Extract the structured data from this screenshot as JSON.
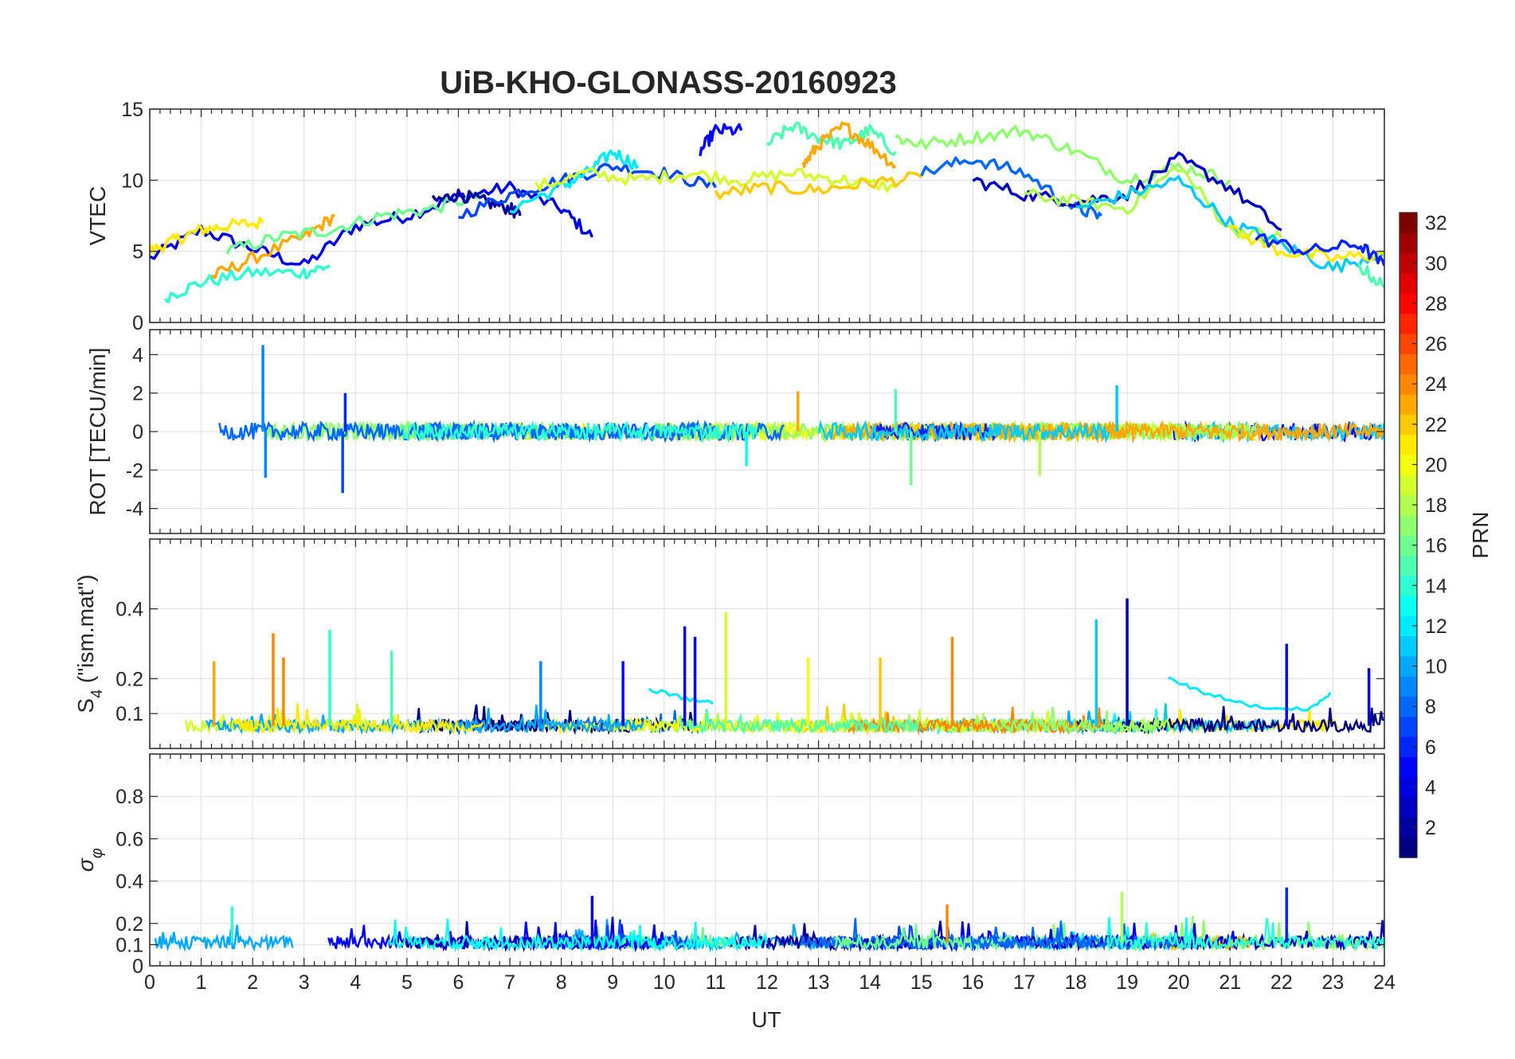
{
  "title": "UiB-KHO-GLONASS-20160923",
  "xlabel": "UT",
  "x_ticks": [
    "0",
    "1",
    "2",
    "3",
    "4",
    "5",
    "6",
    "7",
    "8",
    "9",
    "10",
    "11",
    "12",
    "13",
    "14",
    "15",
    "16",
    "17",
    "18",
    "19",
    "20",
    "21",
    "22",
    "23",
    "24"
  ],
  "colorbar": {
    "label": "PRN",
    "colormap": "jet",
    "range": [
      1,
      32
    ],
    "ticks": [
      "2",
      "4",
      "6",
      "8",
      "10",
      "12",
      "14",
      "16",
      "18",
      "20",
      "22",
      "24",
      "26",
      "28",
      "30",
      "32"
    ]
  },
  "chart_data": [
    {
      "type": "line",
      "ylabel": "VTEC",
      "xlim": [
        0,
        24
      ],
      "ylim": [
        0,
        15
      ],
      "ytick_values": [
        0,
        5,
        10,
        15
      ],
      "y_ticks": [
        "0",
        "5",
        "10",
        "15"
      ],
      "series": [
        {
          "prn": 4,
          "x": [
            0,
            1,
            2,
            3,
            4,
            5,
            6,
            7,
            8,
            8.6
          ],
          "y": [
            4.5,
            6.5,
            5.2,
            4.0,
            6.8,
            7.5,
            8.8,
            9.5,
            8.0,
            6.0
          ]
        },
        {
          "prn": 21,
          "x": [
            0,
            0.5,
            1,
            1.5,
            2.2
          ],
          "y": [
            5.0,
            5.8,
            6.5,
            6.8,
            7.0
          ]
        },
        {
          "prn": 14,
          "x": [
            0.3,
            1,
            2,
            3,
            3.5
          ],
          "y": [
            1.8,
            2.8,
            3.5,
            3.5,
            4.0
          ]
        },
        {
          "prn": 23,
          "x": [
            1.2,
            2,
            3,
            3.6
          ],
          "y": [
            3.2,
            4.5,
            6.0,
            7.5
          ]
        },
        {
          "prn": 16,
          "x": [
            1.5,
            2.5,
            3.5,
            4.5,
            5.5,
            6.5
          ],
          "y": [
            5.0,
            6.0,
            6.5,
            7.5,
            8.0,
            9.0
          ]
        },
        {
          "prn": 2,
          "x": [
            5.5,
            6,
            6.5,
            7,
            7.2
          ],
          "y": [
            8.5,
            9.0,
            8.5,
            8.0,
            7.5
          ]
        },
        {
          "prn": 7,
          "x": [
            6,
            7,
            8,
            9,
            10,
            11
          ],
          "y": [
            7.5,
            9.0,
            10.0,
            11.0,
            10.5,
            9.5
          ]
        },
        {
          "prn": 12,
          "x": [
            7,
            8,
            8.5,
            9,
            9.5
          ],
          "y": [
            8.0,
            9.5,
            10.5,
            12.0,
            11.0
          ]
        },
        {
          "prn": 19,
          "x": [
            7.5,
            8.5,
            9.5,
            10.5,
            11.5,
            12.5,
            13.5,
            14.5
          ],
          "y": [
            9.5,
            10.5,
            10.0,
            10.5,
            10.0,
            10.5,
            10.0,
            9.5
          ]
        },
        {
          "prn": 22,
          "x": [
            11,
            12,
            13,
            14,
            15
          ],
          "y": [
            9.0,
            9.5,
            9.3,
            9.8,
            10.2
          ]
        },
        {
          "prn": 5,
          "x": [
            10.7,
            11,
            11.5
          ],
          "y": [
            12.0,
            13.5,
            13.5
          ]
        },
        {
          "prn": 15,
          "x": [
            12,
            12.5,
            13,
            13.5,
            14,
            14.5
          ],
          "y": [
            12.5,
            13.8,
            13.0,
            12.5,
            13.5,
            12.0
          ]
        },
        {
          "prn": 23,
          "x": [
            12.7,
            13,
            13.5,
            14,
            14.5
          ],
          "y": [
            11.0,
            12.5,
            13.8,
            12.5,
            11.0
          ]
        },
        {
          "prn": 17,
          "x": [
            14.5,
            15,
            16,
            17,
            18,
            19,
            20,
            21
          ],
          "y": [
            13.0,
            12.5,
            13.0,
            13.5,
            12.0,
            10.0,
            11.0,
            10.0
          ]
        },
        {
          "prn": 8,
          "x": [
            15,
            16,
            17,
            18,
            18.5
          ],
          "y": [
            10.5,
            11.5,
            10.5,
            8.0,
            7.5
          ]
        },
        {
          "prn": 3,
          "x": [
            16,
            17,
            18,
            19,
            20,
            21,
            22
          ],
          "y": [
            10.0,
            9.0,
            8.5,
            9.0,
            11.5,
            9.5,
            6.5
          ]
        },
        {
          "prn": 18,
          "x": [
            17,
            18,
            19,
            20,
            21,
            22
          ],
          "y": [
            9.0,
            8.5,
            8.0,
            11.0,
            6.5,
            6.0
          ]
        },
        {
          "prn": 11,
          "x": [
            18,
            19,
            20,
            21,
            22,
            23,
            24
          ],
          "y": [
            8.0,
            9.0,
            10.0,
            7.0,
            5.5,
            3.8,
            5.0
          ]
        },
        {
          "prn": 21,
          "x": [
            21,
            22,
            23,
            24
          ],
          "y": [
            6.5,
            5.0,
            4.5,
            4.8
          ]
        },
        {
          "prn": 6,
          "x": [
            21.5,
            22.5,
            23.5,
            24
          ],
          "y": [
            6.0,
            5.0,
            5.5,
            4.0
          ]
        },
        {
          "prn": 15,
          "x": [
            23.5,
            24
          ],
          "y": [
            4.0,
            2.5
          ]
        }
      ]
    },
    {
      "type": "line",
      "ylabel": "ROT [TECU/min]",
      "xlim": [
        0,
        24
      ],
      "ylim": [
        -5.3,
        5.3
      ],
      "ytick_values": [
        -4,
        -2,
        0,
        2,
        4
      ],
      "y_ticks": [
        "-4",
        "-2",
        "0",
        "2",
        "4"
      ],
      "spikes": [
        {
          "prn": 9,
          "x": 2.2,
          "y": 4.5
        },
        {
          "prn": 9,
          "x": 2.25,
          "y": -2.4
        },
        {
          "prn": 7,
          "x": 3.75,
          "y": -3.2
        },
        {
          "prn": 6,
          "x": 3.8,
          "y": 2.0
        },
        {
          "prn": 23,
          "x": 12.6,
          "y": 2.1
        },
        {
          "prn": 13,
          "x": 11.6,
          "y": -1.8
        },
        {
          "prn": 16,
          "x": 14.8,
          "y": -2.8
        },
        {
          "prn": 15,
          "x": 14.5,
          "y": 2.2
        },
        {
          "prn": 11,
          "x": 18.8,
          "y": 2.4
        },
        {
          "prn": 18,
          "x": 17.3,
          "y": -2.3
        }
      ]
    },
    {
      "type": "line",
      "ylabel": "S4 (\"ism.mat\")",
      "xlim": [
        0,
        24
      ],
      "ylim": [
        0,
        0.6
      ],
      "ytick_values": [
        0.1,
        0.2,
        0.4
      ],
      "y_ticks": [
        "0.1",
        "0.2",
        "0.4"
      ],
      "spikes": [
        {
          "prn": 23,
          "x": 1.25,
          "y": 0.25
        },
        {
          "prn": 24,
          "x": 2.4,
          "y": 0.33
        },
        {
          "prn": 24,
          "x": 2.6,
          "y": 0.26
        },
        {
          "prn": 14,
          "x": 3.5,
          "y": 0.34
        },
        {
          "prn": 15,
          "x": 4.7,
          "y": 0.28
        },
        {
          "prn": 9,
          "x": 7.6,
          "y": 0.25
        },
        {
          "prn": 5,
          "x": 9.2,
          "y": 0.25
        },
        {
          "prn": 4,
          "x": 10.4,
          "y": 0.35
        },
        {
          "prn": 5,
          "x": 10.6,
          "y": 0.32
        },
        {
          "prn": 19,
          "x": 11.2,
          "y": 0.39
        },
        {
          "prn": 20,
          "x": 12.8,
          "y": 0.26
        },
        {
          "prn": 22,
          "x": 14.2,
          "y": 0.26
        },
        {
          "prn": 24,
          "x": 15.6,
          "y": 0.32
        },
        {
          "prn": 11,
          "x": 18.4,
          "y": 0.37
        },
        {
          "prn": 2,
          "x": 19.0,
          "y": 0.43
        },
        {
          "prn": 5,
          "x": 22.1,
          "y": 0.3
        },
        {
          "prn": 4,
          "x": 23.7,
          "y": 0.23
        }
      ],
      "segments": [
        {
          "prn": 12,
          "x": [
            9.7,
            10.5,
            11.0
          ],
          "y": [
            0.17,
            0.14,
            0.13
          ]
        },
        {
          "prn": 12,
          "x": [
            19.8,
            20.5,
            21.5,
            22.5,
            23.0
          ],
          "y": [
            0.2,
            0.16,
            0.12,
            0.11,
            0.16
          ]
        }
      ]
    },
    {
      "type": "line",
      "ylabel": "σφ",
      "xlim": [
        0,
        24
      ],
      "ylim": [
        0,
        1
      ],
      "ytick_values": [
        0,
        0.1,
        0.2,
        0.4,
        0.6,
        0.8
      ],
      "y_ticks": [
        "0",
        "0.1",
        "0.2",
        "0.4",
        "0.6",
        "0.8"
      ],
      "spikes": [
        {
          "prn": 4,
          "x": 8.6,
          "y": 0.33
        },
        {
          "prn": 18,
          "x": 18.9,
          "y": 0.35
        },
        {
          "prn": 6,
          "x": 22.1,
          "y": 0.37
        },
        {
          "prn": 24,
          "x": 15.5,
          "y": 0.29
        },
        {
          "prn": 14,
          "x": 1.6,
          "y": 0.28
        }
      ]
    }
  ]
}
